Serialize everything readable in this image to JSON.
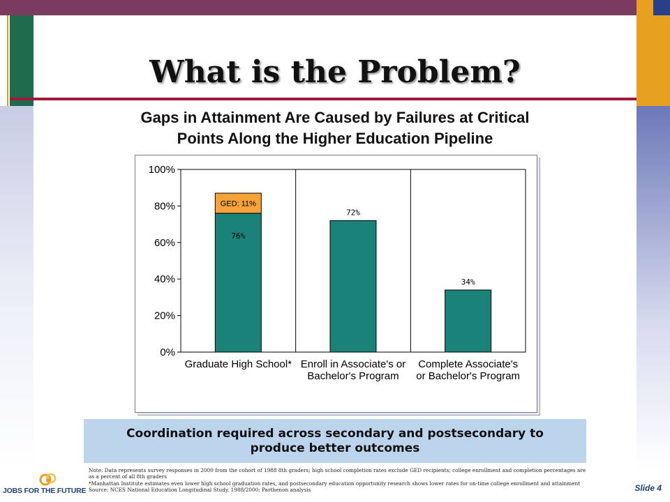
{
  "slide": {
    "title": "What is the Problem?",
    "subtitle_line1": "Gaps in Attainment Are Caused by Failures at Critical",
    "subtitle_line2": "Points Along the Higher Education Pipeline",
    "callout": "Coordination required across secondary and postsecondary to produce better outcomes",
    "notes": [
      "Note: Data represents survey responses in 2000 from the cohort of 1988 8th graders; high school completion rates exclude GED recipients; college enrollment and completion percentages are",
      "as a percent of all 8th graders",
      "*Manhattan Institute estimates even lower high school graduation rates, and postsecondary education opportunity research shows lower rates for on-time college enrollment and attainment",
      "Source: NCES National Education Longitudinal Study, 1988/2000; Parthenon analysis"
    ],
    "slide_number": "Slide 4",
    "logo_text": "JOBS FOR THE FUTURE"
  },
  "colors": {
    "bar": "#1a8278",
    "ged": "#f6a43a",
    "title_rule": "#a0183a",
    "top_bar": "#7a3b5e",
    "callout_bg": "#bcd4ec"
  },
  "chart_data": {
    "type": "bar",
    "categories": [
      [
        "Graduate High School*"
      ],
      [
        "Enroll in Associate's or",
        "Bachelor's Program"
      ],
      [
        "Complete Associate's",
        "or Bachelor's Program"
      ]
    ],
    "values": [
      76,
      72,
      34
    ],
    "data_labels": [
      "76%",
      "72%",
      "34%"
    ],
    "stacked_segment": {
      "category_index": 0,
      "value": 11,
      "label": "GED: 11%"
    },
    "ylim": [
      0,
      100
    ],
    "yticks": [
      "0%",
      "20%",
      "40%",
      "60%",
      "80%",
      "100%"
    ],
    "ytick_values": [
      0,
      20,
      40,
      60,
      80,
      100
    ],
    "grid": false,
    "title": "",
    "xlabel": "",
    "ylabel": ""
  }
}
